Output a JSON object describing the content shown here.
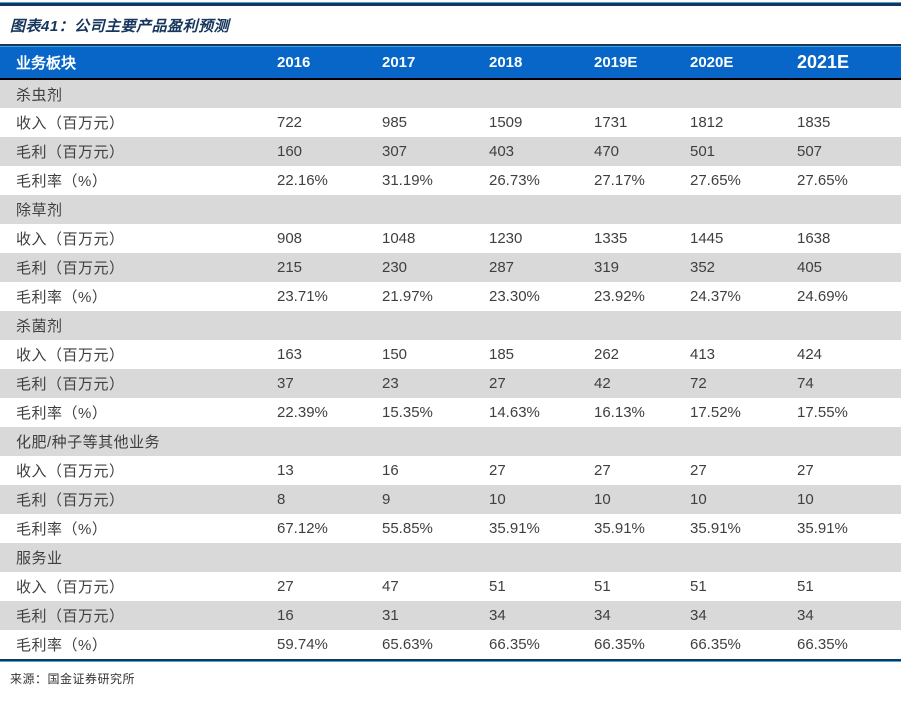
{
  "title": "图表41：公司主要产品盈利预测",
  "source": "来源：国金证券研究所",
  "colors": {
    "header_bg": "#0766C8",
    "stripe_gray": "#D9D9D9",
    "rule_navy": "#17365D",
    "rule_cyan": "#3FA8DC",
    "body_text": "#3F3F3F",
    "header_text": "#FFFFFF"
  },
  "table": {
    "header": [
      "业务板块",
      "2016",
      "2017",
      "2018",
      "2019E",
      "2020E",
      "2021E"
    ],
    "sections": [
      {
        "name": "杀虫剂",
        "rows": [
          {
            "label": "收入（百万元）",
            "values": [
              "722",
              "985",
              "1509",
              "1731",
              "1812",
              "1835"
            ]
          },
          {
            "label": "毛利（百万元）",
            "values": [
              "160",
              "307",
              "403",
              "470",
              "501",
              "507"
            ]
          },
          {
            "label": "毛利率（%）",
            "values": [
              "22.16%",
              "31.19%",
              "26.73%",
              "27.17%",
              "27.65%",
              "27.65%"
            ]
          }
        ]
      },
      {
        "name": "除草剂",
        "rows": [
          {
            "label": "收入（百万元）",
            "values": [
              "908",
              "1048",
              "1230",
              "1335",
              "1445",
              "1638"
            ]
          },
          {
            "label": "毛利（百万元）",
            "values": [
              "215",
              "230",
              "287",
              "319",
              "352",
              "405"
            ]
          },
          {
            "label": "毛利率（%）",
            "values": [
              "23.71%",
              "21.97%",
              "23.30%",
              "23.92%",
              "24.37%",
              "24.69%"
            ]
          }
        ]
      },
      {
        "name": "杀菌剂",
        "rows": [
          {
            "label": "收入（百万元）",
            "values": [
              "163",
              "150",
              "185",
              "262",
              "413",
              "424"
            ]
          },
          {
            "label": "毛利（百万元）",
            "values": [
              "37",
              "23",
              "27",
              "42",
              "72",
              "74"
            ]
          },
          {
            "label": "毛利率（%）",
            "values": [
              "22.39%",
              "15.35%",
              "14.63%",
              "16.13%",
              "17.52%",
              "17.55%"
            ]
          }
        ]
      },
      {
        "name": "化肥/种子等其他业务",
        "rows": [
          {
            "label": "收入（百万元）",
            "values": [
              "13",
              "16",
              "27",
              "27",
              "27",
              "27"
            ]
          },
          {
            "label": "毛利（百万元）",
            "values": [
              "8",
              "9",
              "10",
              "10",
              "10",
              "10"
            ]
          },
          {
            "label": "毛利率（%）",
            "values": [
              "67.12%",
              "55.85%",
              "35.91%",
              "35.91%",
              "35.91%",
              "35.91%"
            ]
          }
        ]
      },
      {
        "name": "服务业",
        "rows": [
          {
            "label": "收入（百万元）",
            "values": [
              "27",
              "47",
              "51",
              "51",
              "51",
              "51"
            ]
          },
          {
            "label": "毛利（百万元）",
            "values": [
              "16",
              "31",
              "34",
              "34",
              "34",
              "34"
            ]
          },
          {
            "label": "毛利率（%）",
            "values": [
              "59.74%",
              "65.63%",
              "66.35%",
              "66.35%",
              "66.35%",
              "66.35%"
            ]
          }
        ]
      }
    ]
  }
}
